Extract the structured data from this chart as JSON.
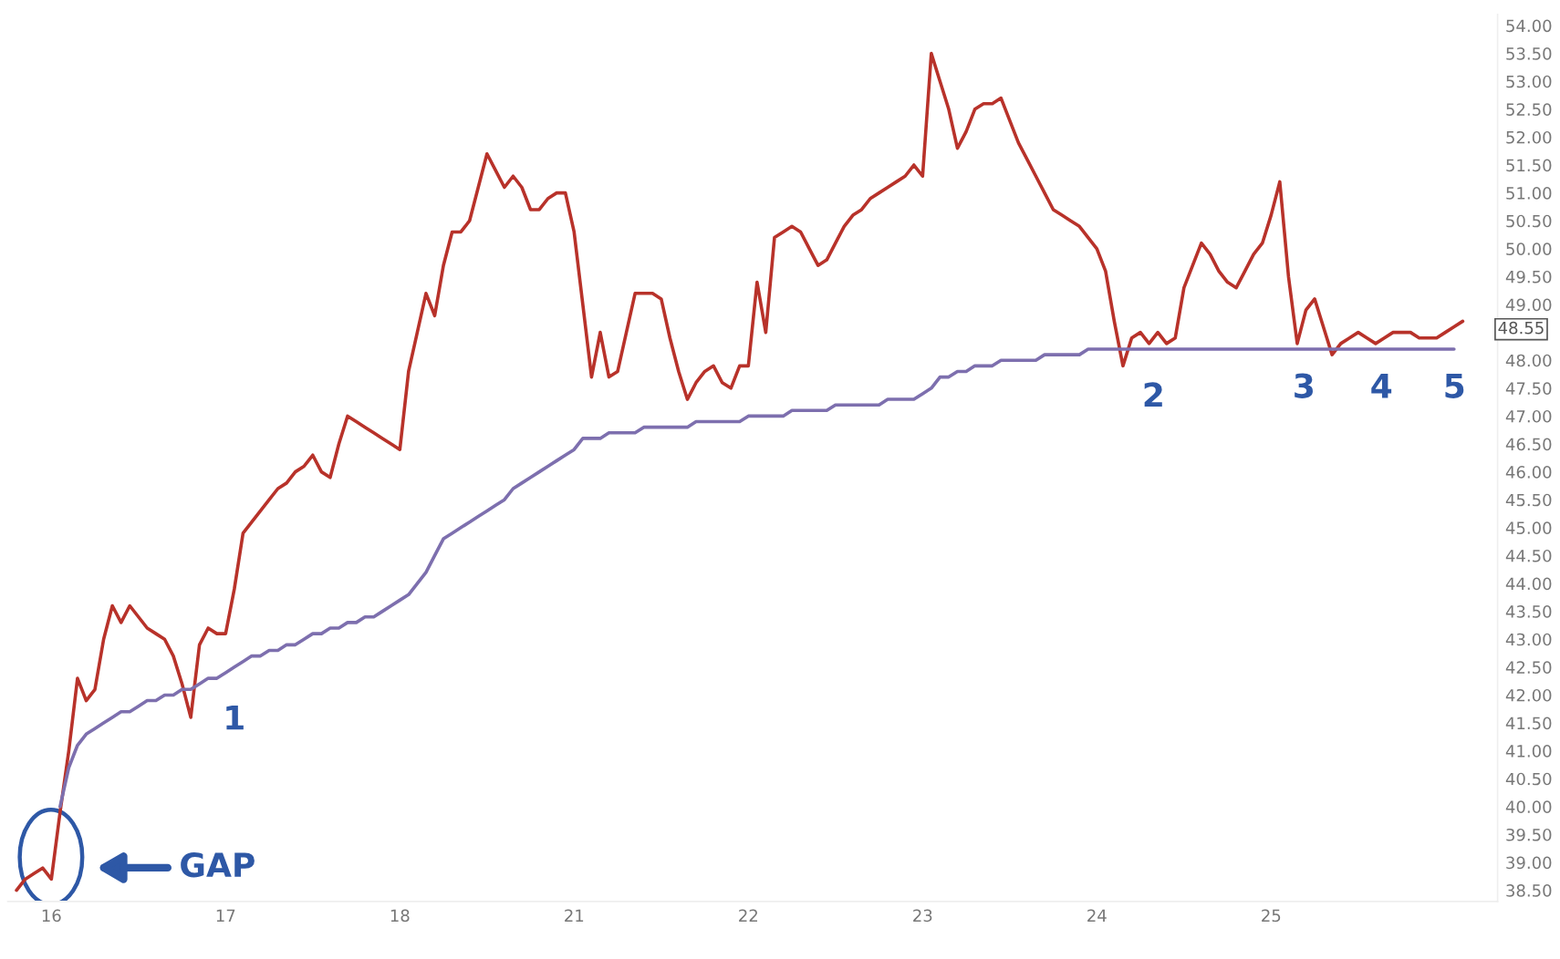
{
  "chart_data": {
    "type": "line",
    "categories": [
      null,
      null,
      null,
      null,
      "16",
      null,
      null,
      null,
      null,
      null,
      null,
      null,
      null,
      null,
      null,
      null,
      null,
      null,
      null,
      null,
      null,
      null,
      null,
      null,
      "17",
      null,
      null,
      null,
      null,
      null,
      null,
      null,
      null,
      null,
      null,
      null,
      null,
      null,
      null,
      null,
      null,
      null,
      null,
      null,
      "18",
      null,
      null,
      null,
      null,
      null,
      null,
      null,
      null,
      null,
      null,
      null,
      null,
      null,
      null,
      null,
      null,
      null,
      null,
      null,
      "21",
      null,
      null,
      null,
      null,
      null,
      null,
      null,
      null,
      null,
      null,
      null,
      null,
      null,
      null,
      null,
      null,
      null,
      null,
      null,
      "22",
      null,
      null,
      null,
      null,
      null,
      null,
      null,
      null,
      null,
      null,
      null,
      null,
      null,
      null,
      null,
      null,
      null,
      null,
      null,
      "23",
      null,
      null,
      null,
      null,
      null,
      null,
      null,
      null,
      null,
      null,
      null,
      null,
      null,
      null,
      null,
      null,
      null,
      null,
      null,
      "24",
      null,
      null,
      null,
      null,
      null,
      null,
      null,
      null,
      null,
      null,
      null,
      null,
      null,
      null,
      null,
      null,
      null,
      null,
      null,
      "25",
      null,
      null,
      null,
      null,
      null,
      null,
      null,
      null,
      null,
      null,
      null,
      null,
      null,
      null,
      null,
      null,
      null,
      null,
      null,
      null,
      null,
      null
    ],
    "ylim": [
      38.3,
      54.2
    ],
    "yticks": [
      {
        "value": 38.5,
        "label": "38.50"
      },
      {
        "value": 39,
        "label": "39.00"
      },
      {
        "value": 39.5,
        "label": "39.50"
      },
      {
        "value": 40,
        "label": "40.00"
      },
      {
        "value": 40.5,
        "label": "40.50"
      },
      {
        "value": 41,
        "label": "41.00"
      },
      {
        "value": 41.5,
        "label": "41.50"
      },
      {
        "value": 42,
        "label": "42.00"
      },
      {
        "value": 42.5,
        "label": "42.50"
      },
      {
        "value": 43,
        "label": "43.00"
      },
      {
        "value": 43.5,
        "label": "43.50"
      },
      {
        "value": 44,
        "label": "44.00"
      },
      {
        "value": 44.5,
        "label": "44.50"
      },
      {
        "value": 45,
        "label": "45.00"
      },
      {
        "value": 45.5,
        "label": "45.50"
      },
      {
        "value": 46,
        "label": "46.00"
      },
      {
        "value": 46.5,
        "label": "46.50"
      },
      {
        "value": 47,
        "label": "47.00"
      },
      {
        "value": 47.5,
        "label": "47.50"
      },
      {
        "value": 48,
        "label": "48.00"
      },
      {
        "value": 49,
        "label": "49.00"
      },
      {
        "value": 49.5,
        "label": "49.50"
      },
      {
        "value": 50,
        "label": "50.00"
      },
      {
        "value": 50.5,
        "label": "50.50"
      },
      {
        "value": 51,
        "label": "51.00"
      },
      {
        "value": 51.5,
        "label": "51.50"
      },
      {
        "value": 52,
        "label": "52.00"
      },
      {
        "value": 52.5,
        "label": "52.50"
      },
      {
        "value": 53,
        "label": "53.00"
      },
      {
        "value": 53.5,
        "label": "53.50"
      },
      {
        "value": 54,
        "label": "54.00"
      }
    ],
    "series": [
      {
        "color": "#b8322a",
        "values": [
          38.5,
          38.7,
          38.8,
          38.9,
          38.7,
          39.9,
          41.0,
          42.3,
          41.9,
          42.1,
          43.0,
          43.6,
          43.3,
          43.6,
          43.4,
          43.2,
          43.1,
          43.0,
          42.7,
          42.2,
          41.6,
          42.9,
          43.2,
          43.1,
          43.1,
          43.9,
          44.9,
          45.1,
          45.3,
          45.5,
          45.7,
          45.8,
          46.0,
          46.1,
          46.3,
          46.0,
          45.9,
          46.5,
          47.0,
          46.9,
          46.8,
          46.7,
          46.6,
          46.5,
          46.4,
          47.8,
          48.5,
          49.2,
          48.8,
          49.7,
          50.3,
          50.3,
          50.5,
          51.1,
          51.7,
          51.4,
          51.1,
          51.3,
          51.1,
          50.7,
          50.7,
          50.9,
          51.0,
          51.0,
          50.3,
          49.0,
          47.7,
          48.5,
          47.7,
          47.8,
          48.5,
          49.2,
          49.2,
          49.2,
          49.1,
          48.4,
          47.8,
          47.3,
          47.6,
          47.8,
          47.9,
          47.6,
          47.5,
          47.9,
          47.9,
          49.4,
          48.5,
          50.2,
          50.3,
          50.4,
          50.3,
          50.0,
          49.7,
          49.8,
          50.1,
          50.4,
          50.6,
          50.7,
          50.9,
          51.0,
          51.1,
          51.2,
          51.3,
          51.5,
          51.3,
          53.5,
          53.0,
          52.5,
          51.8,
          52.1,
          52.5,
          52.6,
          52.6,
          52.7,
          52.3,
          51.9,
          51.6,
          51.3,
          51.0,
          50.7,
          50.6,
          50.5,
          50.4,
          50.2,
          50.0,
          49.6,
          48.7,
          47.9,
          48.4,
          48.5,
          48.3,
          48.5,
          48.3,
          48.4,
          49.3,
          49.7,
          50.1,
          49.9,
          49.6,
          49.4,
          49.3,
          49.6,
          49.9,
          50.1,
          50.6,
          51.2,
          49.5,
          48.3,
          48.9,
          49.1,
          48.6,
          48.1,
          48.3,
          48.4,
          48.5,
          48.4,
          48.3,
          48.4,
          48.5,
          48.5,
          48.5,
          48.4,
          48.4,
          48.4,
          48.5,
          48.6,
          48.7
        ]
      },
      {
        "color": "#7d6fae",
        "values": [
          null,
          null,
          null,
          null,
          null,
          40.0,
          40.7,
          41.1,
          41.3,
          41.4,
          41.5,
          41.6,
          41.7,
          41.7,
          41.8,
          41.9,
          41.9,
          42.0,
          42.0,
          42.1,
          42.1,
          42.2,
          42.3,
          42.3,
          42.4,
          42.5,
          42.6,
          42.7,
          42.7,
          42.8,
          42.8,
          42.9,
          42.9,
          43.0,
          43.1,
          43.1,
          43.2,
          43.2,
          43.3,
          43.3,
          43.4,
          43.4,
          43.5,
          43.6,
          43.7,
          43.8,
          44.0,
          44.2,
          44.5,
          44.8,
          44.9,
          45.0,
          45.1,
          45.2,
          45.3,
          45.4,
          45.5,
          45.7,
          45.8,
          45.9,
          46.0,
          46.1,
          46.2,
          46.3,
          46.4,
          46.6,
          46.6,
          46.6,
          46.7,
          46.7,
          46.7,
          46.7,
          46.8,
          46.8,
          46.8,
          46.8,
          46.8,
          46.8,
          46.9,
          46.9,
          46.9,
          46.9,
          46.9,
          46.9,
          47.0,
          47.0,
          47.0,
          47.0,
          47.0,
          47.1,
          47.1,
          47.1,
          47.1,
          47.1,
          47.2,
          47.2,
          47.2,
          47.2,
          47.2,
          47.2,
          47.3,
          47.3,
          47.3,
          47.3,
          47.4,
          47.5,
          47.7,
          47.7,
          47.8,
          47.8,
          47.9,
          47.9,
          47.9,
          48.0,
          48.0,
          48.0,
          48.0,
          48.0,
          48.1,
          48.1,
          48.1,
          48.1,
          48.1,
          48.2,
          48.2,
          48.2,
          48.2,
          48.2,
          48.2,
          48.2,
          48.2,
          48.2,
          48.2,
          48.2,
          48.2,
          48.2,
          48.2,
          48.2,
          48.2,
          48.2,
          48.2,
          48.2,
          48.2,
          48.2,
          48.2,
          48.2,
          48.2,
          48.2,
          48.2,
          48.2,
          48.2,
          48.2,
          48.2,
          48.2,
          48.2,
          48.2,
          48.2,
          48.2,
          48.2,
          48.2,
          48.2,
          48.2,
          48.2,
          48.2,
          48.2,
          48.2,
          null
        ]
      }
    ],
    "annotations": [
      "1",
      "2",
      "3",
      "4",
      "5",
      "GAP",
      "48.55"
    ],
    "grid": false,
    "legend": false,
    "marker": "none",
    "line_style": "solid"
  }
}
